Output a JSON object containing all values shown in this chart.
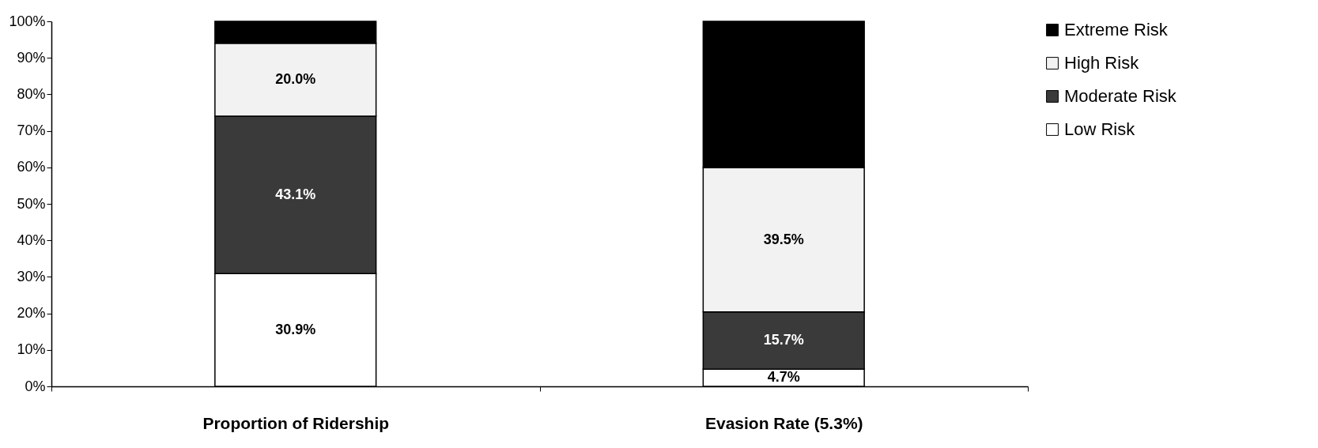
{
  "chart_data": {
    "type": "bar",
    "stacked": true,
    "categories": [
      "Proportion of Ridership",
      "Evasion Rate (5.3%)"
    ],
    "series": [
      {
        "name": "Low Risk",
        "color": "#ffffff",
        "values": [
          30.9,
          4.7
        ],
        "value_labels": [
          "30.9%",
          "4.7%"
        ]
      },
      {
        "name": "Moderate Risk",
        "color": "#3a3a3a",
        "values": [
          43.1,
          15.7
        ],
        "value_labels": [
          "43.1%",
          "15.7%"
        ]
      },
      {
        "name": "High Risk",
        "color": "#f2f2f2",
        "values": [
          20.0,
          39.5
        ],
        "value_labels": [
          "20.0%",
          "39.5%"
        ]
      },
      {
        "name": "Extreme Risk",
        "color": "#000000",
        "values": [
          6.0,
          40.1
        ],
        "value_labels": [
          null,
          null
        ]
      }
    ],
    "ylim": [
      0,
      100
    ],
    "yticks": [
      {
        "value": 0,
        "label": "0%"
      },
      {
        "value": 10,
        "label": "10%"
      },
      {
        "value": 20,
        "label": "20%"
      },
      {
        "value": 30,
        "label": "30%"
      },
      {
        "value": 40,
        "label": "40%"
      },
      {
        "value": 50,
        "label": "50%"
      },
      {
        "value": 60,
        "label": "60%"
      },
      {
        "value": 70,
        "label": "70%"
      },
      {
        "value": 80,
        "label": "80%"
      },
      {
        "value": 90,
        "label": "90%"
      },
      {
        "value": 100,
        "label": "100%"
      }
    ],
    "legend": "right"
  }
}
